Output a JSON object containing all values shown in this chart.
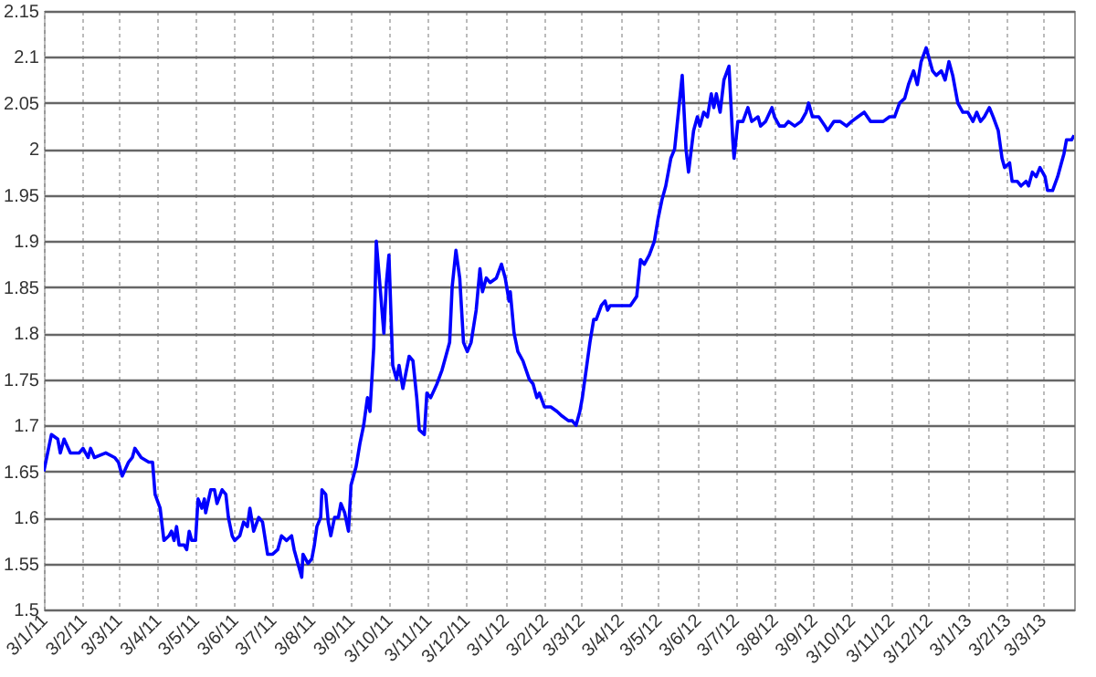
{
  "chart_data": {
    "type": "line",
    "series": [
      {
        "color": "#0000ff",
        "x": [
          "2011-01-03",
          "2011-01-09",
          "2011-01-14",
          "2011-01-16",
          "2011-01-19",
          "2011-01-24",
          "2011-01-31",
          "2011-02-03",
          "2011-02-07",
          "2011-02-09",
          "2011-02-12",
          "2011-02-21",
          "2011-02-28",
          "2011-03-03",
          "2011-03-06",
          "2011-03-11",
          "2011-03-14",
          "2011-03-16",
          "2011-03-21",
          "2011-03-27",
          "2011-03-30",
          "2011-04-01",
          "2011-04-05",
          "2011-04-08",
          "2011-04-12",
          "2011-04-14",
          "2011-04-16",
          "2011-04-18",
          "2011-04-20",
          "2011-04-24",
          "2011-04-26",
          "2011-04-28",
          "2011-04-30",
          "2011-05-03",
          "2011-05-05",
          "2011-05-08",
          "2011-05-10",
          "2011-05-11",
          "2011-05-15",
          "2011-05-18",
          "2011-05-20",
          "2011-05-24",
          "2011-05-27",
          "2011-05-29",
          "2011-06-01",
          "2011-06-03",
          "2011-06-07",
          "2011-06-10",
          "2011-06-13",
          "2011-06-15",
          "2011-06-18",
          "2011-06-22",
          "2011-06-25",
          "2011-06-29",
          "2011-07-03",
          "2011-07-07",
          "2011-07-10",
          "2011-07-14",
          "2011-07-18",
          "2011-07-20",
          "2011-07-26",
          "2011-07-27",
          "2011-07-31",
          "2011-08-03",
          "2011-08-05",
          "2011-08-07",
          "2011-08-10",
          "2011-08-11",
          "2011-08-14",
          "2011-08-16",
          "2011-08-18",
          "2011-08-21",
          "2011-08-24",
          "2011-08-26",
          "2011-08-29",
          "2011-09-01",
          "2011-09-03",
          "2011-09-07",
          "2011-09-10",
          "2011-09-13",
          "2011-09-16",
          "2011-09-18",
          "2011-09-21",
          "2011-09-23",
          "2011-09-29",
          "2011-10-01",
          "2011-10-03",
          "2011-10-06",
          "2011-10-09",
          "2011-10-11",
          "2011-10-14",
          "2011-10-19",
          "2011-10-22",
          "2011-10-25",
          "2011-10-27",
          "2011-10-31",
          "2011-11-02",
          "2011-11-05",
          "2011-11-10",
          "2011-11-14",
          "2011-11-17",
          "2011-11-20",
          "2011-11-22",
          "2011-11-25",
          "2011-11-28",
          "2011-12-01",
          "2011-12-04",
          "2011-12-07",
          "2011-12-11",
          "2011-12-14",
          "2011-12-16",
          "2011-12-19",
          "2011-12-22",
          "2011-12-27",
          "2011-12-31",
          "2012-01-03",
          "2012-01-06",
          "2012-01-07",
          "2012-01-10",
          "2012-01-13",
          "2012-01-17",
          "2012-01-22",
          "2012-01-25",
          "2012-01-28",
          "2012-01-30",
          "2012-02-03",
          "2012-02-08",
          "2012-02-13",
          "2012-02-17",
          "2012-02-22",
          "2012-02-25",
          "2012-02-28",
          "2012-03-02",
          "2012-03-04",
          "2012-03-08",
          "2012-03-10",
          "2012-03-13",
          "2012-03-15",
          "2012-03-19",
          "2012-03-22",
          "2012-03-24",
          "2012-03-26",
          "2012-03-30",
          "2012-04-03",
          "2012-04-08",
          "2012-04-11",
          "2012-04-16",
          "2012-04-19",
          "2012-04-22",
          "2012-04-26",
          "2012-04-30",
          "2012-05-03",
          "2012-05-06",
          "2012-05-09",
          "2012-05-13",
          "2012-05-16",
          "2012-05-19",
          "2012-05-22",
          "2012-05-25",
          "2012-05-27",
          "2012-05-31",
          "2012-06-03",
          "2012-06-05",
          "2012-06-08",
          "2012-06-11",
          "2012-06-14",
          "2012-06-16",
          "2012-06-18",
          "2012-06-21",
          "2012-06-24",
          "2012-06-28",
          "2012-07-01",
          "2012-07-02",
          "2012-07-05",
          "2012-07-09",
          "2012-07-13",
          "2012-07-16",
          "2012-07-21",
          "2012-07-23",
          "2012-07-27",
          "2012-08-01",
          "2012-08-03",
          "2012-08-07",
          "2012-08-11",
          "2012-08-14",
          "2012-08-19",
          "2012-08-24",
          "2012-08-28",
          "2012-08-30",
          "2012-09-02",
          "2012-09-07",
          "2012-09-12",
          "2012-09-14",
          "2012-09-19",
          "2012-09-24",
          "2012-09-29",
          "2012-10-03",
          "2012-10-08",
          "2012-10-13",
          "2012-10-18",
          "2012-10-23",
          "2012-10-28",
          "2012-11-02",
          "2012-11-06",
          "2012-11-10",
          "2012-11-14",
          "2012-11-17",
          "2012-11-21",
          "2012-11-24",
          "2012-11-27",
          "2012-12-01",
          "2012-12-03",
          "2012-12-06",
          "2012-12-09",
          "2012-12-13",
          "2012-12-16",
          "2012-12-19",
          "2012-12-22",
          "2012-12-26",
          "2012-12-30",
          "2013-01-03",
          "2013-01-07",
          "2013-01-10",
          "2013-01-13",
          "2013-01-16",
          "2013-01-20",
          "2013-01-23",
          "2013-01-27",
          "2013-01-30",
          "2013-02-01",
          "2013-02-05",
          "2013-02-07",
          "2013-02-11",
          "2013-02-14",
          "2013-02-18",
          "2013-02-20",
          "2013-02-23",
          "2013-02-26",
          "2013-03-01",
          "2013-03-03",
          "2013-03-05",
          "2013-03-07",
          "2013-03-11",
          "2013-03-15",
          "2013-03-18",
          "2013-03-20",
          "2013-03-22",
          "2013-03-26",
          "2013-03-28"
        ],
        "values": [
          1.65,
          1.69,
          1.685,
          1.67,
          1.685,
          1.67,
          1.67,
          1.675,
          1.665,
          1.675,
          1.665,
          1.67,
          1.665,
          1.66,
          1.645,
          1.66,
          1.665,
          1.675,
          1.665,
          1.66,
          1.66,
          1.625,
          1.61,
          1.575,
          1.58,
          1.585,
          1.575,
          1.59,
          1.57,
          1.57,
          1.565,
          1.585,
          1.575,
          1.575,
          1.62,
          1.61,
          1.62,
          1.605,
          1.63,
          1.63,
          1.615,
          1.63,
          1.625,
          1.6,
          1.58,
          1.575,
          1.58,
          1.595,
          1.59,
          1.61,
          1.585,
          1.6,
          1.595,
          1.56,
          1.56,
          1.565,
          1.58,
          1.575,
          1.58,
          1.565,
          1.535,
          1.56,
          1.55,
          1.555,
          1.57,
          1.59,
          1.6,
          1.63,
          1.625,
          1.595,
          1.58,
          1.6,
          1.6,
          1.615,
          1.605,
          1.585,
          1.635,
          1.655,
          1.68,
          1.7,
          1.73,
          1.715,
          1.785,
          1.9,
          1.8,
          1.855,
          1.885,
          1.765,
          1.75,
          1.765,
          1.74,
          1.775,
          1.77,
          1.73,
          1.695,
          1.69,
          1.735,
          1.73,
          1.745,
          1.76,
          1.775,
          1.79,
          1.85,
          1.89,
          1.86,
          1.79,
          1.78,
          1.79,
          1.825,
          1.87,
          1.845,
          1.86,
          1.855,
          1.86,
          1.875,
          1.86,
          1.835,
          1.845,
          1.8,
          1.78,
          1.77,
          1.75,
          1.745,
          1.73,
          1.735,
          1.72,
          1.72,
          1.715,
          1.71,
          1.705,
          1.705,
          1.7,
          1.715,
          1.73,
          1.77,
          1.79,
          1.815,
          1.815,
          1.83,
          1.835,
          1.825,
          1.83,
          1.83,
          1.83,
          1.83,
          1.83,
          1.84,
          1.88,
          1.875,
          1.885,
          1.9,
          1.925,
          1.945,
          1.96,
          1.99,
          2.0,
          2.04,
          2.08,
          2.0,
          1.975,
          2.02,
          2.035,
          2.025,
          2.04,
          2.035,
          2.06,
          2.045,
          2.06,
          2.04,
          2.075,
          2.09,
          2.01,
          1.99,
          2.03,
          2.03,
          2.045,
          2.03,
          2.035,
          2.025,
          2.03,
          2.045,
          2.035,
          2.025,
          2.025,
          2.03,
          2.025,
          2.03,
          2.04,
          2.05,
          2.035,
          2.035,
          2.025,
          2.02,
          2.03,
          2.03,
          2.025,
          2.03,
          2.035,
          2.04,
          2.03,
          2.03,
          2.03,
          2.035,
          2.035,
          2.05,
          2.055,
          2.07,
          2.085,
          2.07,
          2.095,
          2.11,
          2.1,
          2.085,
          2.08,
          2.085,
          2.075,
          2.095,
          2.08,
          2.05,
          2.04,
          2.04,
          2.03,
          2.04,
          2.03,
          2.035,
          2.045,
          2.035,
          2.02,
          1.99,
          1.98,
          1.985,
          1.965,
          1.965,
          1.96,
          1.965,
          1.96,
          1.975,
          1.97,
          1.98,
          1.975,
          1.97,
          1.955,
          1.955,
          1.97,
          1.985,
          1.995,
          2.01,
          2.01,
          2.015
        ]
      }
    ],
    "xlim": [
      "2011-01-03",
      "2013-03-28"
    ],
    "xticks": [
      {
        "value": "2011-01-03",
        "label": "3/1/11"
      },
      {
        "value": "2011-02-03",
        "label": "3/2/11"
      },
      {
        "value": "2011-03-03",
        "label": "3/3/11"
      },
      {
        "value": "2011-04-03",
        "label": "3/4/11"
      },
      {
        "value": "2011-05-03",
        "label": "3/5/11"
      },
      {
        "value": "2011-06-03",
        "label": "3/6/11"
      },
      {
        "value": "2011-07-03",
        "label": "3/7/11"
      },
      {
        "value": "2011-08-03",
        "label": "3/8/11"
      },
      {
        "value": "2011-09-03",
        "label": "3/9/11"
      },
      {
        "value": "2011-10-03",
        "label": "3/10/11"
      },
      {
        "value": "2011-11-03",
        "label": "3/11/11"
      },
      {
        "value": "2011-12-03",
        "label": "3/12/11"
      },
      {
        "value": "2012-01-03",
        "label": "3/1/12"
      },
      {
        "value": "2012-02-03",
        "label": "3/2/12"
      },
      {
        "value": "2012-03-03",
        "label": "3/3/12"
      },
      {
        "value": "2012-04-03",
        "label": "3/4/12"
      },
      {
        "value": "2012-05-03",
        "label": "3/5/12"
      },
      {
        "value": "2012-06-03",
        "label": "3/6/12"
      },
      {
        "value": "2012-07-03",
        "label": "3/7/12"
      },
      {
        "value": "2012-08-03",
        "label": "3/8/12"
      },
      {
        "value": "2012-09-03",
        "label": "3/9/12"
      },
      {
        "value": "2012-10-03",
        "label": "3/10/12"
      },
      {
        "value": "2012-11-03",
        "label": "3/11/12"
      },
      {
        "value": "2012-12-03",
        "label": "3/12/12"
      },
      {
        "value": "2013-01-03",
        "label": "3/1/13"
      },
      {
        "value": "2013-02-03",
        "label": "3/2/13"
      },
      {
        "value": "2013-03-03",
        "label": "3/3/13"
      }
    ],
    "ylim": [
      1.5,
      2.15
    ],
    "yticks": [
      1.5,
      1.55,
      1.6,
      1.65,
      1.7,
      1.75,
      1.8,
      1.85,
      1.9,
      1.95,
      2,
      2.05,
      2.1,
      2.15
    ],
    "grid": true
  }
}
